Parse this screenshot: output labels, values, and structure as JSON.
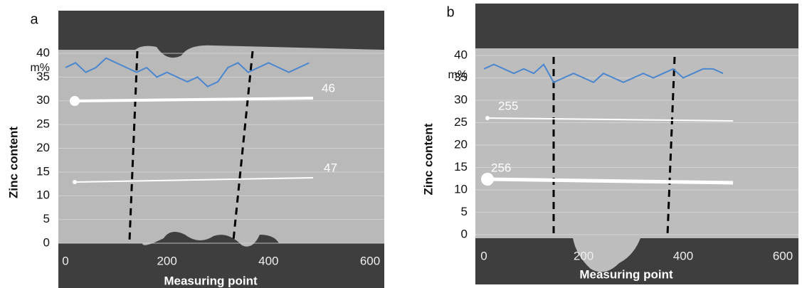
{
  "chart_data": [
    {
      "type": "line",
      "panel_label": "a",
      "y_label": "Zinc content",
      "y_unit": "m%",
      "x_label": "Measuring point",
      "x": [
        0,
        20,
        40,
        60,
        80,
        100,
        120,
        140,
        160,
        180,
        200,
        220,
        240,
        260,
        280,
        300,
        320,
        340,
        360,
        380,
        400,
        420,
        440,
        460,
        480
      ],
      "values": [
        37,
        38,
        36,
        37,
        39,
        38,
        37,
        36,
        37,
        35,
        36,
        35,
        34,
        35,
        33,
        34,
        37,
        38,
        36,
        37,
        38,
        37,
        36,
        37,
        38
      ],
      "color": "#4a86d0",
      "xlim": [
        0,
        600
      ],
      "ylim": [
        0,
        40
      ],
      "xticks": [
        0,
        200,
        400,
        600
      ],
      "yticks": [
        0,
        5,
        10,
        15,
        20,
        25,
        30,
        35,
        40
      ],
      "grid": true,
      "annotations": [
        "46",
        "47"
      ]
    },
    {
      "type": "line",
      "panel_label": "b",
      "y_label": "Zinc content",
      "y_unit": "m%",
      "x_label": "Measuring point",
      "x": [
        0,
        20,
        40,
        60,
        80,
        100,
        120,
        140,
        160,
        180,
        200,
        220,
        240,
        260,
        280,
        300,
        320,
        340,
        360,
        380,
        400,
        420,
        440,
        460,
        480
      ],
      "values": [
        37,
        38,
        37,
        36,
        37,
        36,
        38,
        34,
        35,
        36,
        35,
        34,
        36,
        35,
        34,
        35,
        36,
        35,
        36,
        37,
        35,
        36,
        37,
        37,
        36
      ],
      "color": "#4a86d0",
      "xlim": [
        0,
        600
      ],
      "ylim": [
        0,
        40
      ],
      "xticks": [
        0,
        200,
        400,
        600
      ],
      "yticks": [
        0,
        5,
        10,
        15,
        20,
        25,
        30,
        35,
        40
      ],
      "grid": true,
      "annotations": [
        "255",
        "256"
      ]
    }
  ]
}
